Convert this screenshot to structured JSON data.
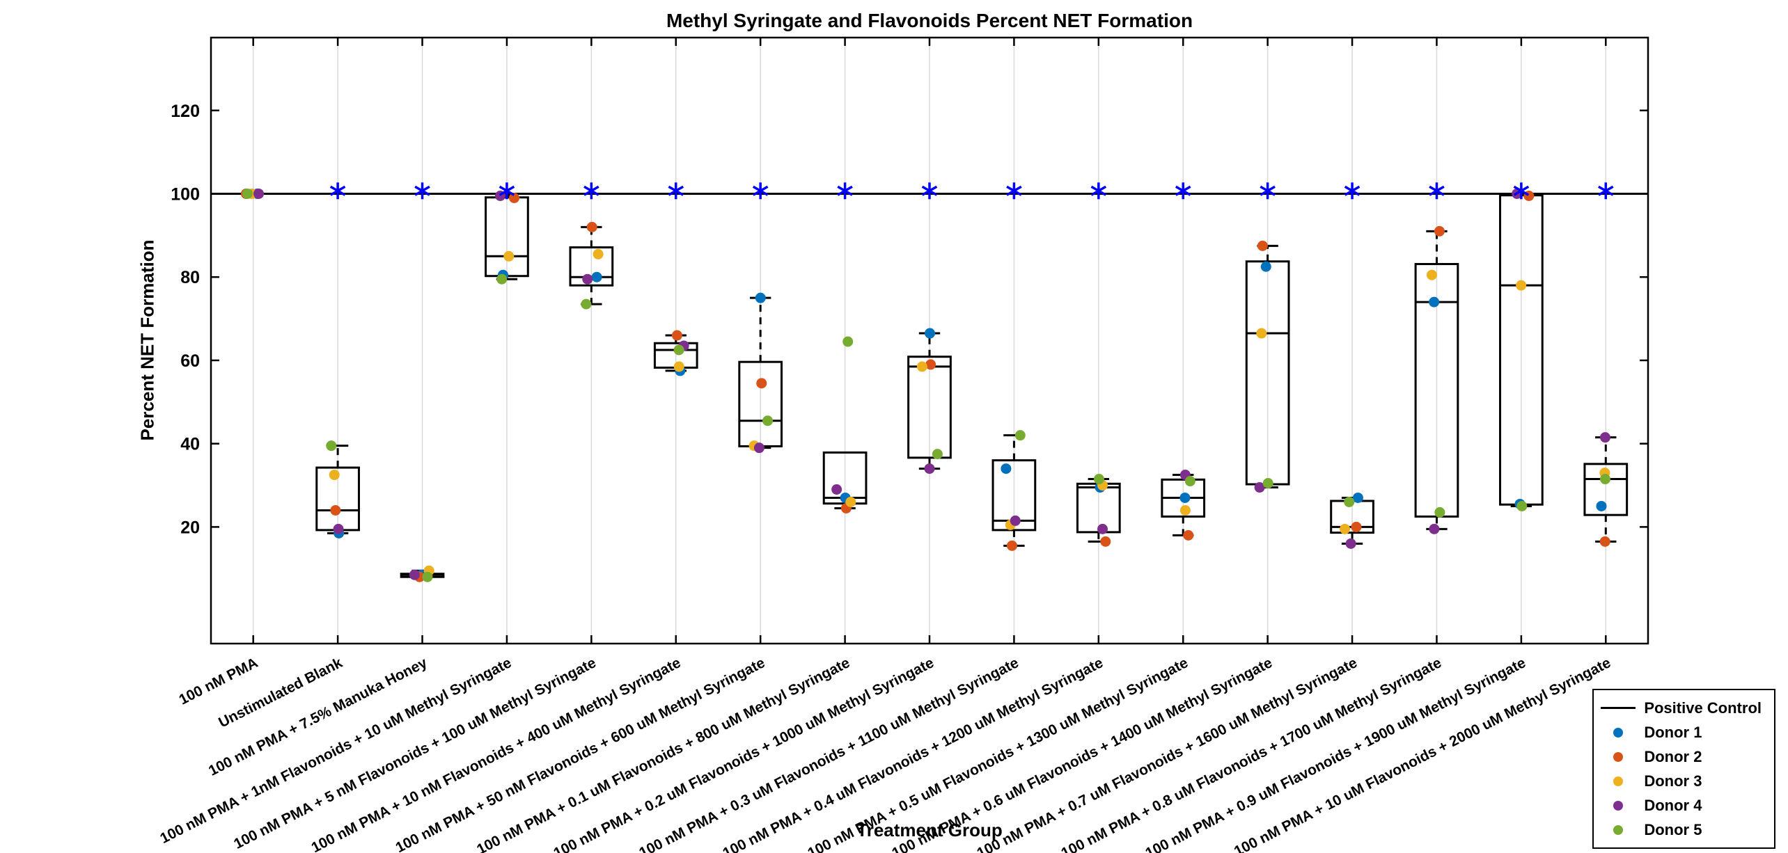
{
  "chart_data": {
    "type": "boxplot",
    "title": "Methyl Syringate and Flavonoids Percent NET Formation",
    "xlabel": "Treatment Group",
    "ylabel": "Percent NET Formation",
    "ylim": [
      -8,
      137.5
    ],
    "yticks": [
      20,
      40,
      60,
      80,
      100,
      120
    ],
    "grid": "vertical-only",
    "grid_color": "#D9D9D9",
    "box_color": "#000000",
    "positive_control": {
      "value": 100,
      "color": "#000000"
    },
    "significance": {
      "marker": "*",
      "color": "#0000FF",
      "groups": [
        false,
        true,
        true,
        true,
        true,
        true,
        true,
        true,
        true,
        true,
        true,
        true,
        true,
        true,
        true,
        true,
        true
      ]
    },
    "categories": [
      "100 nM PMA",
      "Unstimulated Blank",
      "100 nM PMA + 7.5% Manuka Honey",
      "100 nM PMA + 1nM Flavonoids + 10 uM Methyl Syringate",
      "100 nM PMA + 5 nM Flavonoids + 100 uM Methyl Syringate",
      "100 nM PMA + 10 nM Flavonoids + 400 uM Methyl Syringate",
      "100 nM PMA + 50 nM Flavonoids + 600 uM Methyl Syringate",
      "100 nM PMA + 0.1 uM Flavonoids + 800 uM Methyl Syringate",
      "100 nM PMA + 0.2 uM Flavonoids + 1000 uM Methyl Syringate",
      "100 nM PMA + 0.3 uM Flavonoids + 1100 uM Methyl Syringate",
      "100 nM PMA + 0.4 uM Flavonoids + 1200 uM Methyl Syringate",
      "100 nM PMA + 0.5 uM Flavonoids + 1300 uM Methyl Syringate",
      "100 nM PMA + 0.6 uM Flavonoids + 1400 uM Methyl Syringate",
      "100 nM PMA + 0.7 uM Flavonoids + 1600 uM Methyl Syringate",
      "100 nM PMA + 0.8 uM Flavonoids + 1700 uM Methyl Syringate",
      "100 nM PMA + 0.9 uM Flavonoids + 1900 uM Methyl Syringate",
      "100 nM PMA + 10 uM Flavonoids + 2000 uM Methyl Syringate"
    ],
    "series": [
      {
        "name": "Donor 1",
        "color": "#0072BD",
        "values": [
          100,
          18.5,
          8.5,
          80.5,
          80,
          57.5,
          75,
          27,
          66.5,
          34,
          29.5,
          27,
          82.5,
          27,
          74,
          25.5,
          25
        ]
      },
      {
        "name": "Donor 2",
        "color": "#D95319",
        "values": [
          100,
          24,
          8,
          99,
          92,
          66,
          54.5,
          24.5,
          59,
          15.5,
          16.5,
          18,
          87.5,
          20,
          91,
          99.5,
          16.5
        ]
      },
      {
        "name": "Donor 3",
        "color": "#EDB120",
        "values": [
          100,
          32.5,
          9.5,
          85,
          85.5,
          58.5,
          39.5,
          26,
          58.5,
          20.5,
          30,
          24,
          66.5,
          19.5,
          80.5,
          78,
          33
        ]
      },
      {
        "name": "Donor 4",
        "color": "#7E2F8E",
        "values": [
          100,
          19.5,
          8.5,
          99.5,
          79.5,
          63.5,
          39,
          29,
          34,
          21.5,
          19.5,
          32.5,
          29.5,
          16,
          19.5,
          100,
          41.5
        ]
      },
      {
        "name": "Donor 5",
        "color": "#77AC30",
        "values": [
          100,
          39.5,
          8,
          79.5,
          73.5,
          62.5,
          45.5,
          64.5,
          37.5,
          42,
          31.5,
          31,
          30.5,
          26,
          23.5,
          25,
          31.5
        ]
      }
    ],
    "legend": {
      "position": "bottom-right",
      "entries": [
        {
          "label": "Positive Control",
          "swatch": "line",
          "color": "#000000"
        },
        {
          "label": "Donor 1",
          "swatch": "dot",
          "color": "#0072BD"
        },
        {
          "label": "Donor 2",
          "swatch": "dot",
          "color": "#D95319"
        },
        {
          "label": "Donor 3",
          "swatch": "dot",
          "color": "#EDB120"
        },
        {
          "label": "Donor 4",
          "swatch": "dot",
          "color": "#7E2F8E"
        },
        {
          "label": "Donor 5",
          "swatch": "dot",
          "color": "#77AC30"
        }
      ]
    }
  }
}
